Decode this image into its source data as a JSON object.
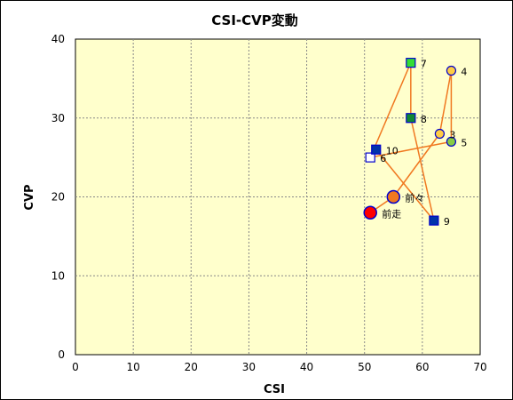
{
  "chart_data": {
    "type": "scatter",
    "title": "CSI-CVP変動",
    "xlabel": "CSI",
    "ylabel": "CVP",
    "xlim": [
      0,
      70
    ],
    "ylim": [
      0,
      40
    ],
    "xticks": [
      0,
      10,
      20,
      30,
      40,
      50,
      60,
      70
    ],
    "yticks": [
      0,
      10,
      20,
      30,
      40
    ],
    "grid": true,
    "plot_background": "#ffffcc",
    "line_color": "#f07820",
    "path_order": [
      "前走",
      "前々",
      "3",
      "4",
      "5",
      "6",
      "7",
      "8",
      "9",
      "10"
    ],
    "points": [
      {
        "label": "前走",
        "x": 51,
        "y": 18,
        "marker": "circle-large",
        "fill": "#ff0000",
        "stroke": "#0000cc"
      },
      {
        "label": "前々",
        "x": 55,
        "y": 20,
        "marker": "circle-large",
        "fill": "#f07820",
        "stroke": "#0000cc"
      },
      {
        "label": "3",
        "x": 63,
        "y": 28,
        "marker": "circle",
        "fill": "#ffcc44",
        "stroke": "#0000cc"
      },
      {
        "label": "4",
        "x": 65,
        "y": 36,
        "marker": "circle",
        "fill": "#ffcc44",
        "stroke": "#0000cc"
      },
      {
        "label": "5",
        "x": 65,
        "y": 27,
        "marker": "circle",
        "fill": "#88cc44",
        "stroke": "#0000cc"
      },
      {
        "label": "6",
        "x": 51,
        "y": 25,
        "marker": "square",
        "fill": "#ffffff",
        "stroke": "#0000cc"
      },
      {
        "label": "7",
        "x": 58,
        "y": 37,
        "marker": "square",
        "fill": "#33dd33",
        "stroke": "#0000cc"
      },
      {
        "label": "8",
        "x": 58,
        "y": 30,
        "marker": "square",
        "fill": "#118833",
        "stroke": "#0000cc"
      },
      {
        "label": "9",
        "x": 62,
        "y": 17,
        "marker": "square",
        "fill": "#0033aa",
        "stroke": "#0000cc"
      },
      {
        "label": "10",
        "x": 52,
        "y": 26,
        "marker": "square",
        "fill": "#0033aa",
        "stroke": "#0000cc"
      }
    ]
  }
}
